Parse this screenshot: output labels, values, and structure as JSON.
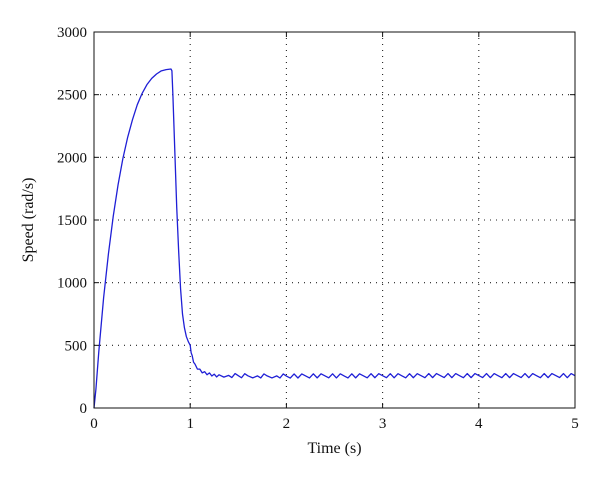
{
  "chart_data": {
    "type": "line",
    "title": "",
    "xlabel": "Time (s)",
    "ylabel": "Speed (rad/s)",
    "xlim": [
      0,
      5
    ],
    "ylim": [
      0,
      3000
    ],
    "xticks": [
      0,
      1,
      2,
      3,
      4,
      5
    ],
    "yticks": [
      0,
      500,
      1000,
      1500,
      2000,
      2500,
      3000
    ],
    "xtick_labels": [
      "0",
      "1",
      "2",
      "3",
      "4",
      "5"
    ],
    "ytick_labels": [
      "0",
      "500",
      "1000",
      "1500",
      "2000",
      "2500",
      "3000"
    ],
    "grid": true,
    "legend": "none",
    "series": [
      {
        "color": "#1f1fd6",
        "x": [
          0,
          0.02,
          0.05,
          0.1,
          0.15,
          0.2,
          0.25,
          0.3,
          0.35,
          0.4,
          0.45,
          0.5,
          0.55,
          0.6,
          0.65,
          0.7,
          0.75,
          0.8,
          0.81,
          0.82,
          0.84,
          0.86,
          0.88,
          0.9,
          0.92,
          0.94,
          0.96,
          0.98,
          1.0,
          1.02,
          1.05,
          1.1,
          1.15,
          1.2,
          1.25,
          1.3,
          1.4,
          1.5,
          1.6,
          1.7,
          1.8,
          1.9,
          2.0,
          2.2,
          2.4,
          2.6,
          2.8,
          3.0,
          3.2,
          3.4,
          3.6,
          3.8,
          4.0,
          4.2,
          4.4,
          4.6,
          4.8,
          5.0
        ],
        "y": [
          0,
          150,
          450,
          880,
          1230,
          1530,
          1780,
          1990,
          2160,
          2300,
          2420,
          2510,
          2580,
          2630,
          2665,
          2690,
          2700,
          2705,
          2690,
          2500,
          2050,
          1600,
          1250,
          950,
          750,
          640,
          570,
          530,
          500,
          420,
          350,
          310,
          290,
          280,
          270,
          265,
          260,
          258,
          257,
          256,
          256,
          256,
          255,
          256,
          257,
          256,
          257,
          258,
          257,
          258,
          259,
          258,
          259,
          258,
          259,
          258,
          259,
          258
        ]
      }
    ]
  }
}
